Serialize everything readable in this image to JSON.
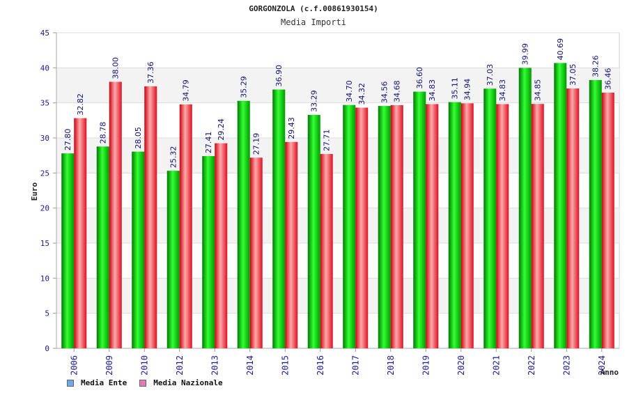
{
  "chart_data": {
    "type": "bar",
    "title": "GORGONZOLA (c.f.00861930154)",
    "subtitle": "Media Importi",
    "xlabel": "Anno",
    "ylabel": "Euro",
    "ylim": [
      0,
      45
    ],
    "yticks": [
      0,
      5,
      10,
      15,
      20,
      25,
      30,
      35,
      40,
      45
    ],
    "categories": [
      "2006",
      "2009",
      "2010",
      "2012",
      "2013",
      "2014",
      "2015",
      "2016",
      "2017",
      "2018",
      "2019",
      "2020",
      "2021",
      "2022",
      "2023",
      "2024"
    ],
    "series": [
      {
        "name": "Media Ente",
        "color": "#00aa00",
        "legend_color": "#6fa8e8",
        "values": [
          27.8,
          28.78,
          28.05,
          25.32,
          27.41,
          35.29,
          36.9,
          33.29,
          34.7,
          34.56,
          36.6,
          35.11,
          37.03,
          39.99,
          40.69,
          38.26
        ],
        "labels": [
          "27.80",
          "28.78",
          "28.05",
          "25.32",
          "27.41",
          "35.29",
          "36.90",
          "33.29",
          "34.70",
          "34.56",
          "36.60",
          "35.11",
          "37.03",
          "39.99",
          "40.69",
          "38.26"
        ]
      },
      {
        "name": "Media Nazionale",
        "color": "#ee1122",
        "legend_color": "#e07ab8",
        "values": [
          32.82,
          38.0,
          37.36,
          34.79,
          29.24,
          27.19,
          29.43,
          27.71,
          34.32,
          34.68,
          34.83,
          34.94,
          34.83,
          34.85,
          37.05,
          36.46
        ],
        "labels": [
          "32.82",
          "38.00",
          "37.36",
          "34.79",
          "29.24",
          "27.19",
          "29.43",
          "27.71",
          "34.32",
          "34.68",
          "34.83",
          "34.94",
          "34.83",
          "34.85",
          "37.05",
          "36.46"
        ]
      }
    ],
    "grid": true,
    "legend_position": "bottom-left"
  }
}
